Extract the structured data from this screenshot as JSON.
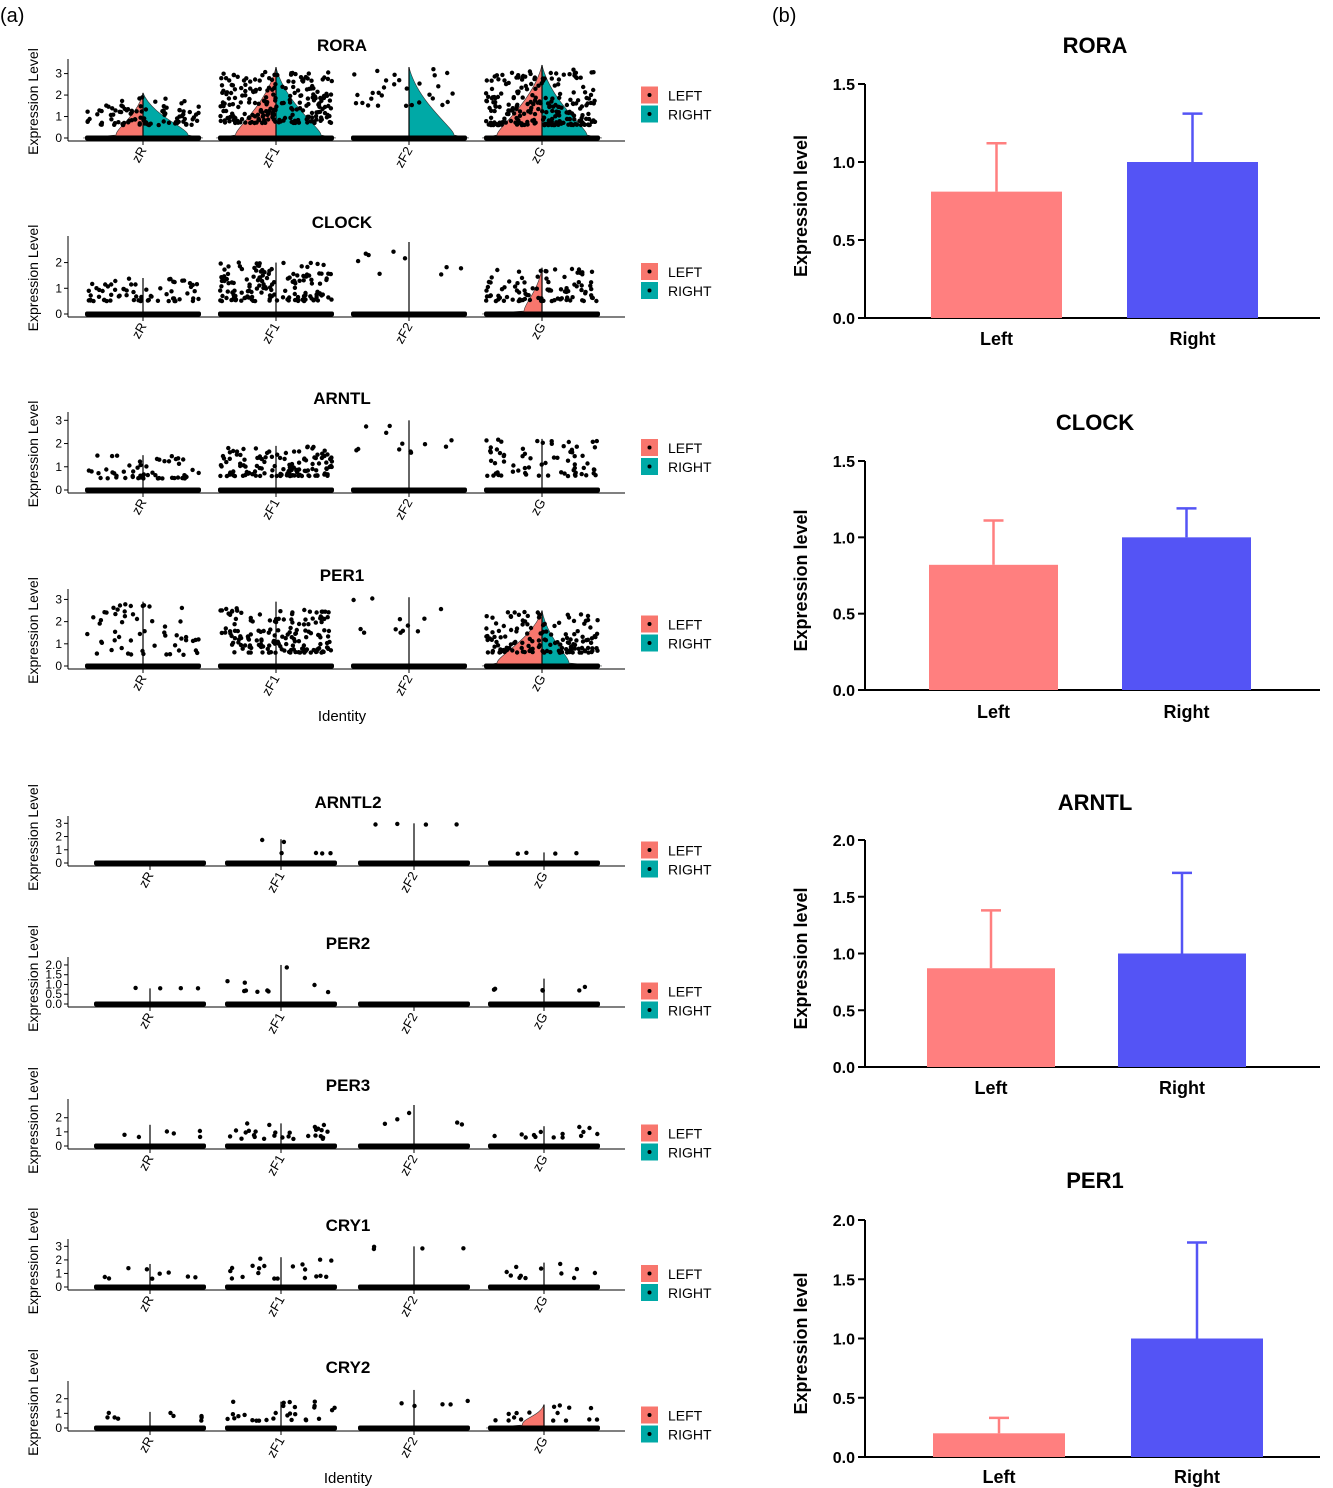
{
  "panel_labels": {
    "a": "(a)",
    "b": "(b)"
  },
  "colors": {
    "left_violin": "#F8766D",
    "right_violin": "#00A9A6",
    "left_bar": "#FF7F7F",
    "right_bar": "#5454F5",
    "points": "#000000"
  },
  "chart_data": [
    {
      "type": "scatter",
      "subtype": "split-violin",
      "title": "RORA",
      "ylabel": "Expression Level",
      "xlabel": "",
      "categories": [
        "zR",
        "zF1",
        "zF2",
        "zG"
      ],
      "y_ticks": [
        "0",
        "1",
        "2",
        "3"
      ],
      "ylim": [
        0,
        3.4
      ],
      "legend": [
        "LEFT",
        "RIGHT"
      ],
      "legend_position": "right",
      "groups": [
        {
          "nonzero_low": 0.6,
          "nonzero_high": 1.9,
          "dense": 0.35,
          "violin": [
            0.6,
            1.0
          ],
          "vmax": 2.1
        },
        {
          "nonzero_low": 0.7,
          "nonzero_high": 3.1,
          "dense": 0.9,
          "violin": [
            0.9,
            1.0
          ],
          "vmax": 3.3
        },
        {
          "nonzero_low": 1.5,
          "nonzero_high": 3.3,
          "dense": 0.1,
          "violin": [
            0.0,
            1.0
          ],
          "vmax": 3.3
        },
        {
          "nonzero_low": 0.6,
          "nonzero_high": 3.2,
          "dense": 0.9,
          "violin": [
            1.0,
            1.0
          ],
          "vmax": 3.4
        }
      ]
    },
    {
      "type": "scatter",
      "subtype": "split-violin",
      "title": "CLOCK",
      "ylabel": "Expression Level",
      "xlabel": "",
      "categories": [
        "zR",
        "zF1",
        "zF2",
        "zG"
      ],
      "y_ticks": [
        "0",
        "1",
        "2"
      ],
      "ylim": [
        0,
        2.8
      ],
      "legend": [
        "LEFT",
        "RIGHT"
      ],
      "legend_position": "right",
      "groups": [
        {
          "nonzero_low": 0.5,
          "nonzero_high": 1.4,
          "dense": 0.25,
          "violin": [
            0.0,
            0.0
          ],
          "vmax": 1.4
        },
        {
          "nonzero_low": 0.5,
          "nonzero_high": 2.0,
          "dense": 0.55,
          "violin": [
            0.0,
            0.0
          ],
          "vmax": 2.0
        },
        {
          "nonzero_low": 1.5,
          "nonzero_high": 2.7,
          "dense": 0.02,
          "violin": [
            0.0,
            0.0
          ],
          "vmax": 2.8
        },
        {
          "nonzero_low": 0.5,
          "nonzero_high": 1.8,
          "dense": 0.35,
          "violin": [
            0.4,
            0.0
          ],
          "vmax": 1.8
        }
      ]
    },
    {
      "type": "scatter",
      "subtype": "split-violin",
      "title": "ARNTL",
      "ylabel": "Expression Level",
      "xlabel": "",
      "categories": [
        "zR",
        "zF1",
        "zF2",
        "zG"
      ],
      "y_ticks": [
        "0",
        "1",
        "2",
        "3"
      ],
      "ylim": [
        0,
        3.1
      ],
      "legend": [
        "LEFT",
        "RIGHT"
      ],
      "legend_position": "right",
      "groups": [
        {
          "nonzero_low": 0.5,
          "nonzero_high": 1.5,
          "dense": 0.2,
          "violin": [
            0.0,
            0.0
          ],
          "vmax": 1.5
        },
        {
          "nonzero_low": 0.6,
          "nonzero_high": 1.9,
          "dense": 0.5,
          "violin": [
            0.0,
            0.0
          ],
          "vmax": 1.9
        },
        {
          "nonzero_low": 1.5,
          "nonzero_high": 3.0,
          "dense": 0.03,
          "violin": [
            0.0,
            0.0
          ],
          "vmax": 3.0
        },
        {
          "nonzero_low": 0.6,
          "nonzero_high": 2.2,
          "dense": 0.25,
          "violin": [
            0.0,
            0.0
          ],
          "vmax": 2.2
        }
      ]
    },
    {
      "type": "scatter",
      "subtype": "split-violin",
      "title": "PER1",
      "ylabel": "Expression Level",
      "xlabel": "Identity",
      "categories": [
        "zR",
        "zF1",
        "zF2",
        "zG"
      ],
      "y_ticks": [
        "0",
        "1",
        "2",
        "3"
      ],
      "ylim": [
        0,
        3.2
      ],
      "legend": [
        "LEFT",
        "RIGHT"
      ],
      "legend_position": "right",
      "groups": [
        {
          "nonzero_low": 0.5,
          "nonzero_high": 2.8,
          "dense": 0.2,
          "violin": [
            0.0,
            0.0
          ],
          "vmax": 2.9
        },
        {
          "nonzero_low": 0.6,
          "nonzero_high": 2.6,
          "dense": 0.6,
          "violin": [
            0.0,
            0.0
          ],
          "vmax": 2.9
        },
        {
          "nonzero_low": 1.5,
          "nonzero_high": 3.1,
          "dense": 0.03,
          "violin": [
            0.0,
            0.0
          ],
          "vmax": 3.1
        },
        {
          "nonzero_low": 0.6,
          "nonzero_high": 2.5,
          "dense": 0.55,
          "violin": [
            1.0,
            0.6
          ],
          "vmax": 2.5
        }
      ]
    },
    {
      "type": "scatter",
      "subtype": "split-violin",
      "title": "ARNTL2",
      "ylabel": "Expression Level",
      "xlabel": "",
      "categories": [
        "zR",
        "zF1",
        "zF2",
        "zG"
      ],
      "y_ticks": [
        "0",
        "1",
        "2",
        "3"
      ],
      "ylim": [
        0,
        3.1
      ],
      "legend": [
        "LEFT",
        "RIGHT"
      ],
      "legend_position": "right",
      "groups": [
        {
          "nonzero_low": 0,
          "nonzero_high": 0,
          "dense": 0.0,
          "violin": [
            0.0,
            0.0
          ],
          "vmax": 0.0
        },
        {
          "nonzero_low": 0.7,
          "nonzero_high": 1.8,
          "dense": 0.03,
          "violin": [
            0.0,
            0.0
          ],
          "vmax": 1.8
        },
        {
          "nonzero_low": 2.9,
          "nonzero_high": 3.0,
          "dense": 0.005,
          "violin": [
            0.0,
            0.0
          ],
          "vmax": 3.0
        },
        {
          "nonzero_low": 0.7,
          "nonzero_high": 0.8,
          "dense": 0.005,
          "violin": [
            0.0,
            0.0
          ],
          "vmax": 0.8
        }
      ]
    },
    {
      "type": "scatter",
      "subtype": "split-violin",
      "title": "PER2",
      "ylabel": "Expression Level",
      "xlabel": "",
      "categories": [
        "zR",
        "zF1",
        "zF2",
        "zG"
      ],
      "y_ticks": [
        "0.0",
        "0.5",
        "1.0",
        "1.5",
        "2.0"
      ],
      "ylim": [
        0,
        2.1
      ],
      "legend": [
        "LEFT",
        "RIGHT"
      ],
      "legend_position": "right",
      "groups": [
        {
          "nonzero_low": 0.8,
          "nonzero_high": 0.9,
          "dense": 0.005,
          "violin": [
            0.0,
            0.0
          ],
          "vmax": 0.8
        },
        {
          "nonzero_low": 0.6,
          "nonzero_high": 2.0,
          "dense": 0.08,
          "violin": [
            0.0,
            0.0
          ],
          "vmax": 2.0
        },
        {
          "nonzero_low": 0,
          "nonzero_high": 0,
          "dense": 0.0,
          "violin": [
            0.0,
            0.0
          ],
          "vmax": 0.0
        },
        {
          "nonzero_low": 0.6,
          "nonzero_high": 1.3,
          "dense": 0.03,
          "violin": [
            0.0,
            0.0
          ],
          "vmax": 1.3
        }
      ]
    },
    {
      "type": "scatter",
      "subtype": "split-violin",
      "title": "PER3",
      "ylabel": "Expression Level",
      "xlabel": "",
      "categories": [
        "zR",
        "zF1",
        "zF2",
        "zG"
      ],
      "y_ticks": [
        "0",
        "1",
        "2"
      ],
      "ylim": [
        0,
        2.9
      ],
      "legend": [
        "LEFT",
        "RIGHT"
      ],
      "legend_position": "right",
      "groups": [
        {
          "nonzero_low": 0.6,
          "nonzero_high": 1.5,
          "dense": 0.03,
          "violin": [
            0.0,
            0.0
          ],
          "vmax": 1.5
        },
        {
          "nonzero_low": 0.5,
          "nonzero_high": 1.6,
          "dense": 0.3,
          "violin": [
            0.0,
            0.0
          ],
          "vmax": 1.6
        },
        {
          "nonzero_low": 1.5,
          "nonzero_high": 2.8,
          "dense": 0.01,
          "violin": [
            0.0,
            0.0
          ],
          "vmax": 2.9
        },
        {
          "nonzero_low": 0.6,
          "nonzero_high": 1.4,
          "dense": 0.12,
          "violin": [
            0.0,
            0.0
          ],
          "vmax": 1.4
        }
      ]
    },
    {
      "type": "scatter",
      "subtype": "split-violin",
      "title": "CRY1",
      "ylabel": "Expression Level",
      "xlabel": "",
      "categories": [
        "zR",
        "zF1",
        "zF2",
        "zG"
      ],
      "y_ticks": [
        "0",
        "1",
        "2",
        "3"
      ],
      "ylim": [
        0,
        3.1
      ],
      "legend": [
        "LEFT",
        "RIGHT"
      ],
      "legend_position": "right",
      "groups": [
        {
          "nonzero_low": 0.6,
          "nonzero_high": 1.7,
          "dense": 0.06,
          "violin": [
            0.0,
            0.0
          ],
          "vmax": 1.7
        },
        {
          "nonzero_low": 0.6,
          "nonzero_high": 2.2,
          "dense": 0.2,
          "violin": [
            0.0,
            0.0
          ],
          "vmax": 2.2
        },
        {
          "nonzero_low": 2.8,
          "nonzero_high": 3.0,
          "dense": 0.005,
          "violin": [
            0.0,
            0.0
          ],
          "vmax": 3.0
        },
        {
          "nonzero_low": 0.6,
          "nonzero_high": 1.8,
          "dense": 0.1,
          "violin": [
            0.0,
            0.0
          ],
          "vmax": 1.8
        }
      ]
    },
    {
      "type": "scatter",
      "subtype": "split-violin",
      "title": "CRY2",
      "ylabel": "Expression Level",
      "xlabel": "Identity",
      "categories": [
        "zR",
        "zF1",
        "zF2",
        "zG"
      ],
      "y_ticks": [
        "0",
        "1",
        "2"
      ],
      "ylim": [
        0,
        2.8
      ],
      "legend": [
        "LEFT",
        "RIGHT"
      ],
      "legend_position": "right",
      "groups": [
        {
          "nonzero_low": 0.5,
          "nonzero_high": 1.1,
          "dense": 0.06,
          "violin": [
            0.0,
            0.0
          ],
          "vmax": 1.1
        },
        {
          "nonzero_low": 0.5,
          "nonzero_high": 1.8,
          "dense": 0.3,
          "violin": [
            0.0,
            0.0
          ],
          "vmax": 1.8
        },
        {
          "nonzero_low": 1.5,
          "nonzero_high": 2.6,
          "dense": 0.01,
          "violin": [
            0.0,
            0.0
          ],
          "vmax": 2.6
        },
        {
          "nonzero_low": 0.5,
          "nonzero_high": 1.6,
          "dense": 0.15,
          "violin": [
            0.5,
            0.0
          ],
          "vmax": 1.6
        }
      ]
    },
    {
      "type": "bar",
      "title": "RORA",
      "ylabel": "Expression level",
      "xlabel": "",
      "categories": [
        "Left",
        "Right"
      ],
      "values": [
        0.81,
        1.0
      ],
      "error": [
        0.31,
        0.31
      ],
      "ylim": [
        0,
        1.5
      ],
      "y_ticks": [
        "0.0",
        "0.5",
        "1.0",
        "1.5"
      ],
      "tick_values": [
        0,
        0.5,
        1.0,
        1.5
      ]
    },
    {
      "type": "bar",
      "title": "CLOCK",
      "ylabel": "Expression level",
      "xlabel": "",
      "categories": [
        "Left",
        "Right"
      ],
      "values": [
        0.82,
        1.0
      ],
      "error": [
        0.29,
        0.19
      ],
      "ylim": [
        0,
        1.5
      ],
      "y_ticks": [
        "0.0",
        "0.5",
        "1.0",
        "1.5"
      ],
      "tick_values": [
        0,
        0.5,
        1.0,
        1.5
      ]
    },
    {
      "type": "bar",
      "title": "ARNTL",
      "ylabel": "Expression level",
      "xlabel": "",
      "categories": [
        "Left",
        "Right"
      ],
      "values": [
        0.87,
        1.0
      ],
      "error": [
        0.51,
        0.71
      ],
      "ylim": [
        0,
        2.0
      ],
      "y_ticks": [
        "0.0",
        "0.5",
        "1.0",
        "1.5",
        "2.0"
      ],
      "tick_values": [
        0,
        0.5,
        1.0,
        1.5,
        2.0
      ]
    },
    {
      "type": "bar",
      "title": "PER1",
      "ylabel": "Expression level",
      "xlabel": "",
      "categories": [
        "Left",
        "Right"
      ],
      "values": [
        0.2,
        1.0
      ],
      "error": [
        0.13,
        0.81
      ],
      "ylim": [
        0,
        2.0
      ],
      "y_ticks": [
        "0.0",
        "0.5",
        "1.0",
        "1.5",
        "2.0"
      ],
      "tick_values": [
        0,
        0.5,
        1.0,
        1.5,
        2.0
      ]
    }
  ]
}
